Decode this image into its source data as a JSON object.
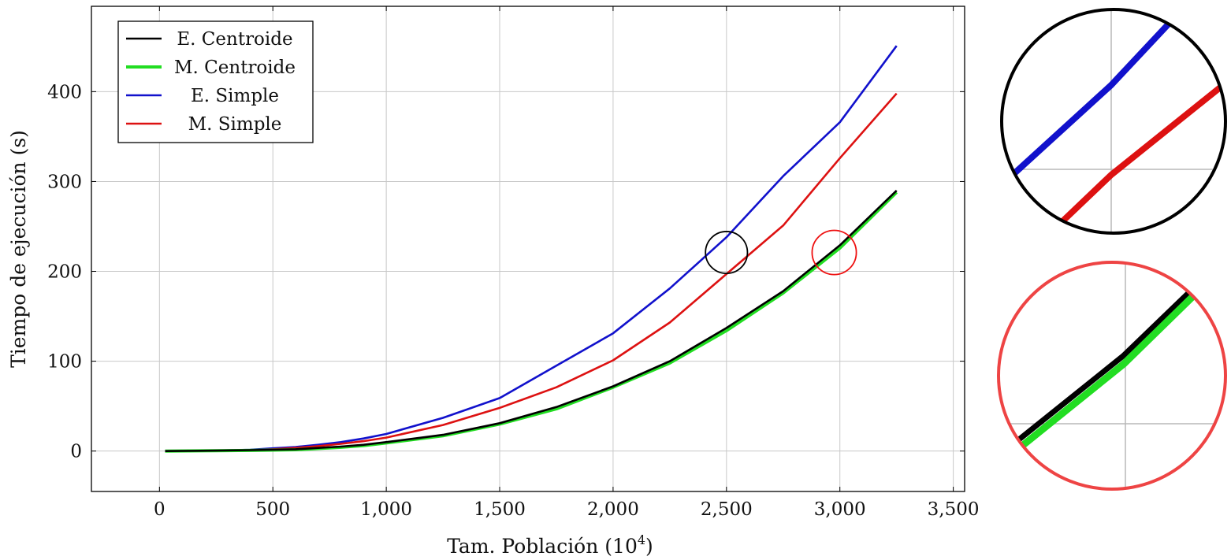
{
  "chart_data": {
    "type": "line",
    "xlabel": "Tam. Población",
    "xlabel_unit_base": "10",
    "xlabel_unit_exp": "4",
    "ylabel": "Tiempo de ejecución (s)",
    "xlim": [
      -300,
      3550
    ],
    "ylim": [
      -45,
      495
    ],
    "x_ticks": [
      0,
      500,
      1000,
      1500,
      2000,
      2500,
      3000,
      3500
    ],
    "x_tick_labels": [
      "0",
      "500",
      "1,000",
      "1,500",
      "2,000",
      "2,500",
      "3,000",
      "3,500"
    ],
    "y_ticks": [
      0,
      100,
      200,
      300,
      400
    ],
    "y_tick_labels": [
      "0",
      "100",
      "200",
      "300",
      "400"
    ],
    "grid": true,
    "legend_position": "top-left",
    "series": [
      {
        "name": "E. Centroide",
        "color": "#000000",
        "x": [
          25,
          250,
          400,
          500,
          600,
          700,
          800,
          900,
          1000,
          1250,
          1500,
          1750,
          2000,
          2250,
          2500,
          2750,
          3000,
          3250
        ],
        "y": [
          0,
          0.5,
          1,
          1.5,
          2,
          3.5,
          5,
          7,
          10,
          18,
          31,
          49,
          72,
          100,
          137,
          178,
          229,
          290
        ]
      },
      {
        "name": "M. Centroide",
        "color": "#22dd22",
        "x": [
          25,
          250,
          400,
          500,
          600,
          700,
          800,
          900,
          1000,
          1250,
          1500,
          1750,
          2000,
          2250,
          2500,
          2750,
          3000,
          3250
        ],
        "y": [
          0,
          0.3,
          0.7,
          1,
          1.5,
          2.8,
          4.2,
          6,
          9,
          17,
          30,
          47,
          71,
          98,
          134,
          176,
          226,
          288
        ]
      },
      {
        "name": "E. Simple",
        "color": "#1111cc",
        "x": [
          25,
          250,
          400,
          500,
          600,
          700,
          800,
          900,
          1000,
          1250,
          1500,
          1750,
          2000,
          2250,
          2500,
          2750,
          3000,
          3250
        ],
        "y": [
          0,
          0.5,
          1.5,
          3,
          4.5,
          7,
          10,
          14,
          19,
          37,
          59,
          95,
          131,
          181,
          238,
          306,
          366,
          451
        ]
      },
      {
        "name": "M. Simple",
        "color": "#dd1111",
        "x": [
          25,
          250,
          400,
          500,
          600,
          700,
          800,
          900,
          1000,
          1250,
          1500,
          1750,
          2000,
          2250,
          2500,
          2750,
          3000,
          3250
        ],
        "y": [
          0,
          0.4,
          1,
          2,
          3.5,
          5.5,
          8,
          11,
          15,
          29,
          48,
          71,
          101,
          143,
          197,
          251,
          326,
          398
        ]
      }
    ],
    "annotations": [
      {
        "shape": "circle",
        "color": "#000000",
        "cx": 2500,
        "cy": 221,
        "r_x": 185
      },
      {
        "shape": "circle",
        "color": "#ee1111",
        "cx": 2975,
        "cy": 221,
        "r_x": 195
      }
    ]
  },
  "zoom_insets": [
    {
      "border_color": "#000000",
      "shows": [
        "E. Simple",
        "M. Simple"
      ]
    },
    {
      "border_color": "#ee4444",
      "shows": [
        "E. Centroide",
        "M. Centroide"
      ]
    }
  ]
}
